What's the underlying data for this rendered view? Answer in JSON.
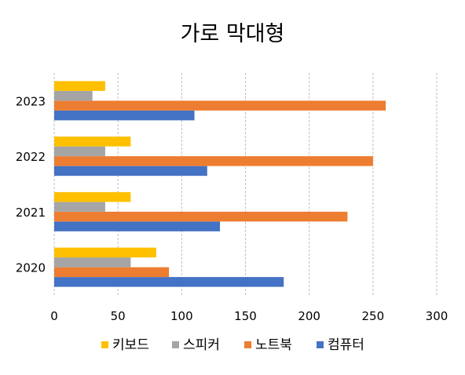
{
  "chart_data": {
    "type": "bar",
    "orientation": "horizontal",
    "title": "가로 막대형",
    "categories": [
      "2020",
      "2021",
      "2022",
      "2023"
    ],
    "series": [
      {
        "name": "컴퓨터",
        "color": "#4472C4",
        "values": [
          180,
          130,
          120,
          110
        ]
      },
      {
        "name": "노트북",
        "color": "#ED7D31",
        "values": [
          90,
          230,
          250,
          260
        ]
      },
      {
        "name": "스피커",
        "color": "#A5A5A5",
        "values": [
          60,
          40,
          40,
          30
        ]
      },
      {
        "name": "키보드",
        "color": "#FFC000",
        "values": [
          80,
          60,
          60,
          40
        ]
      }
    ],
    "legend_order": [
      "키보드",
      "스피커",
      "노트북",
      "컴퓨터"
    ],
    "xlim": [
      0,
      300
    ],
    "x_ticks": [
      0,
      50,
      100,
      150,
      200,
      250,
      300
    ],
    "grid": "vertical dashed",
    "legend_position": "bottom"
  }
}
